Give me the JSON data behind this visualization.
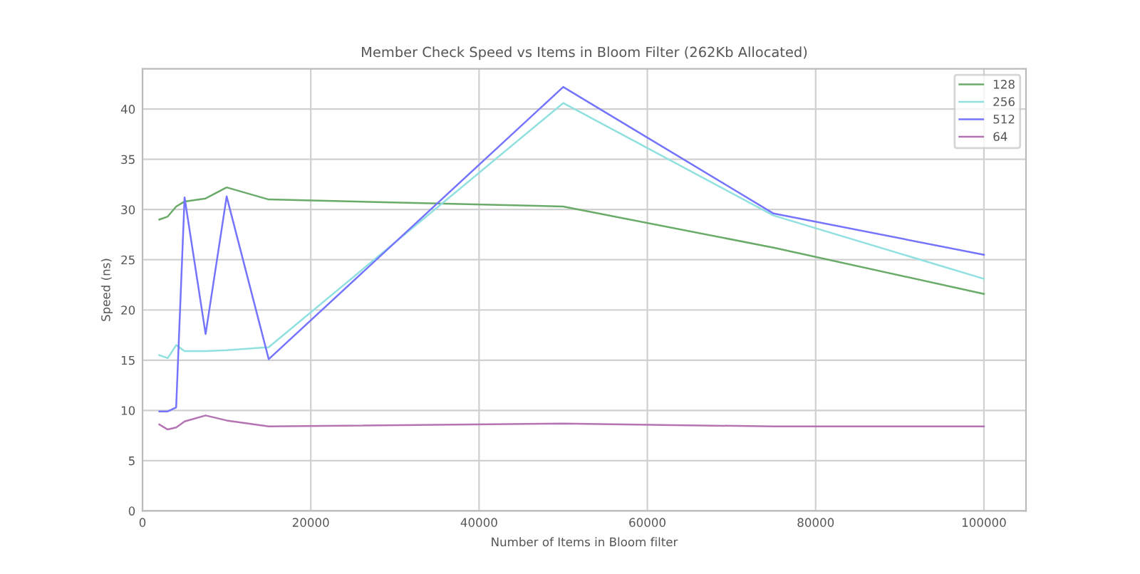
{
  "chart_data": {
    "type": "line",
    "title": "Member Check Speed vs Items in Bloom Filter (262Kb Allocated)",
    "xlabel": "Number of Items in Bloom filter",
    "ylabel": "Speed (ns)",
    "x": [
      2000,
      3000,
      4000,
      5000,
      7500,
      10000,
      15000,
      50000,
      75000,
      100000
    ],
    "series": [
      {
        "name": "128",
        "color": "#6aab6a",
        "values": [
          29.0,
          29.3,
          30.3,
          30.8,
          31.1,
          32.2,
          31.0,
          30.3,
          26.2,
          21.6
        ]
      },
      {
        "name": "256",
        "color": "#90e0e0",
        "values": [
          15.5,
          15.2,
          16.5,
          15.9,
          15.9,
          16.0,
          16.3,
          40.6,
          29.4,
          23.1
        ]
      },
      {
        "name": "512",
        "color": "#7474ff",
        "values": [
          9.9,
          9.9,
          10.3,
          31.2,
          17.6,
          31.3,
          15.1,
          42.2,
          29.6,
          25.5
        ]
      },
      {
        "name": "64",
        "color": "#b474b4",
        "values": [
          8.6,
          8.1,
          8.3,
          8.9,
          9.5,
          9.0,
          8.4,
          8.7,
          8.4,
          8.4
        ]
      }
    ],
    "xlim": [
      0,
      105000
    ],
    "ylim": [
      0,
      44
    ],
    "xticks": [
      0,
      20000,
      40000,
      60000,
      80000,
      100000
    ],
    "yticks": [
      0,
      5,
      10,
      15,
      20,
      25,
      30,
      35,
      40
    ],
    "grid": true,
    "legend": "top right",
    "marker": "none",
    "line_style": "solid"
  }
}
